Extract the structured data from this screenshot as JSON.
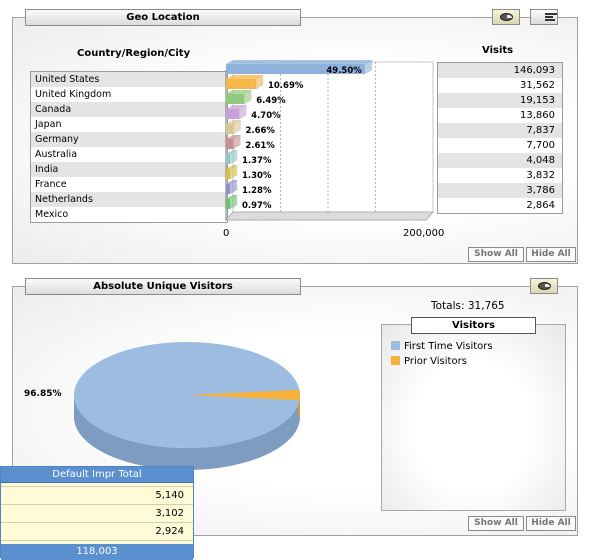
{
  "geo": {
    "title": "Geo Location",
    "col_country": "Country/Region/City",
    "col_visits": "Visits",
    "axis_min": "0",
    "axis_max": "200,000",
    "show_all": "Show All",
    "hide_all": "Hide All",
    "pie_icon": "pie-chart-icon",
    "bar_icon": "bar-chart-icon",
    "countries": [
      "United States",
      "United Kingdom",
      "Canada",
      "Japan",
      "Germany",
      "Australia",
      "India",
      "France",
      "Netherlands",
      "Mexico"
    ],
    "visits": [
      "146,093",
      "31,562",
      "19,153",
      "13,860",
      "7,837",
      "7,700",
      "4,048",
      "3,832",
      "3,786",
      "2,864"
    ],
    "percents": [
      "49.50%",
      "10.69%",
      "6.49%",
      "4.70%",
      "2.66%",
      "2.61%",
      "1.37%",
      "1.30%",
      "1.28%",
      "0.97%"
    ],
    "colors": [
      "#8fb2dc",
      "#f5b64a",
      "#93c97d",
      "#c8a0d8",
      "#d8c890",
      "#c89090",
      "#8ec8c8",
      "#d8c040",
      "#9090d0",
      "#70c070"
    ]
  },
  "chart_data": {
    "type": "bar",
    "categories": [
      "United States",
      "United Kingdom",
      "Canada",
      "Japan",
      "Germany",
      "Australia",
      "India",
      "France",
      "Netherlands",
      "Mexico"
    ],
    "values": [
      146093,
      31562,
      19153,
      13860,
      7837,
      7700,
      4048,
      3832,
      3786,
      2864
    ],
    "percent_labels": [
      "49.50%",
      "10.69%",
      "6.49%",
      "4.70%",
      "2.66%",
      "2.61%",
      "1.37%",
      "1.30%",
      "1.28%",
      "0.97%"
    ],
    "xlim": [
      0,
      200000
    ],
    "xlabel": "",
    "ylabel": ""
  },
  "visitors": {
    "title": "Absolute Unique Visitors",
    "totals": "Totals: 31,765",
    "legend_title": "Visitors",
    "legend": [
      {
        "label": "First Time Visitors",
        "color": "#9dbde0"
      },
      {
        "label": "Prior Visitors",
        "color": "#f7b23e"
      }
    ],
    "pie_label": "96.85%",
    "pie_share": 0.9685,
    "show_all": "Show All",
    "hide_all": "Hide All",
    "pie_icon": "pie-chart-icon"
  },
  "overlay": {
    "header": "Default Impr Total",
    "rows": [
      "5,140",
      "3,102",
      "2,924"
    ],
    "footer": "118,003"
  }
}
